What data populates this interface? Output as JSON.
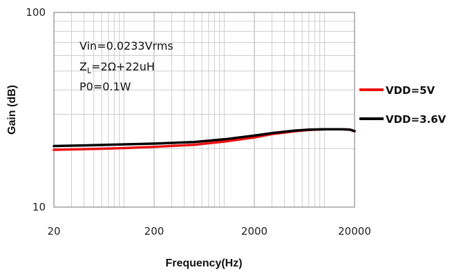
{
  "chart_data": {
    "type": "line",
    "x_scale": "log",
    "y_scale": "log",
    "xlim": [
      20,
      20000
    ],
    "ylim": [
      10,
      100
    ],
    "xlabel": "Frequency(Hz)",
    "ylabel": "Gain (dB)",
    "x_ticks": [
      "20",
      "200",
      "2000",
      "20000"
    ],
    "y_ticks": [
      "10",
      "100"
    ],
    "grid": true,
    "legend_position": "right",
    "annotations": {
      "vin": "Vin=0.0233Vrms",
      "zl_prefix": "Z",
      "zl_sub": "L",
      "zl_rest": "=2Ω+22uH",
      "p0": "P0=0.1W"
    },
    "series": [
      {
        "name": "VDD=5V",
        "color": "#ee1111",
        "x": [
          20,
          50,
          100,
          200,
          500,
          1000,
          2000,
          3000,
          5000,
          7000,
          10000,
          15000,
          18000,
          20000
        ],
        "y": [
          19.7,
          19.9,
          20.1,
          20.4,
          20.9,
          21.7,
          22.8,
          23.7,
          24.5,
          24.9,
          25.1,
          25.1,
          25.0,
          24.5
        ]
      },
      {
        "name": "VDD=3.6V",
        "color": "#000000",
        "x": [
          20,
          50,
          100,
          200,
          500,
          1000,
          2000,
          3000,
          5000,
          7000,
          10000,
          15000,
          18000,
          20000
        ],
        "y": [
          20.6,
          20.8,
          21.0,
          21.2,
          21.6,
          22.3,
          23.3,
          24.0,
          24.7,
          25.0,
          25.1,
          25.1,
          25.0,
          24.6
        ]
      }
    ]
  }
}
